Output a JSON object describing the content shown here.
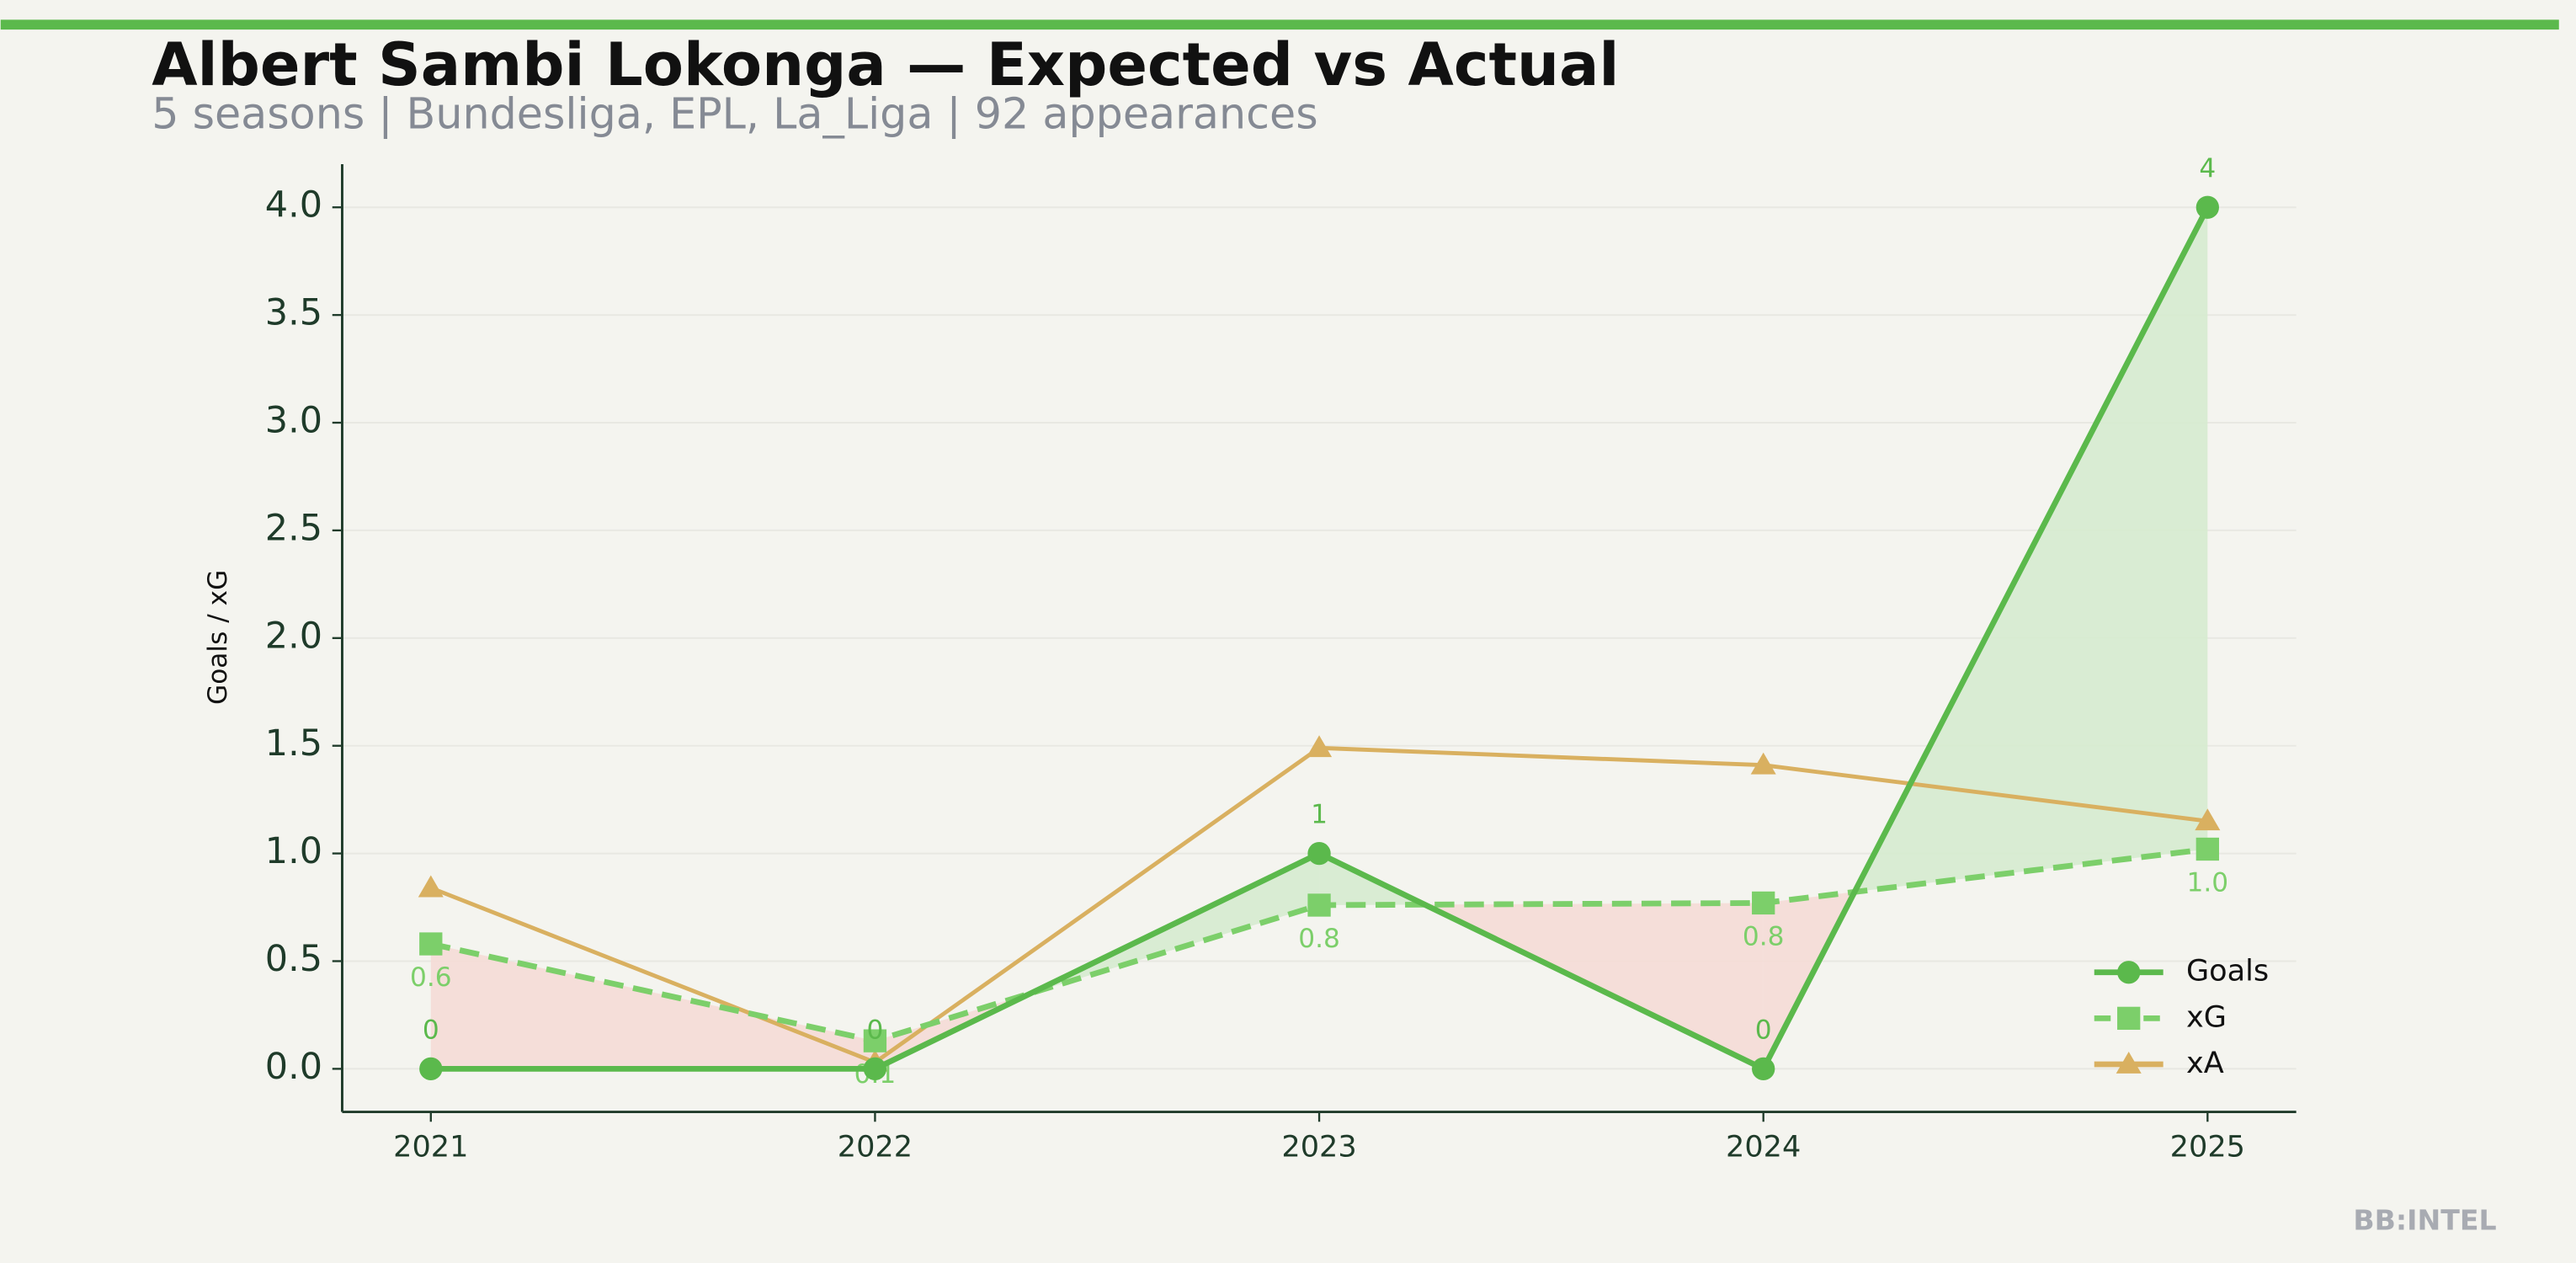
{
  "chart_data": {
    "type": "line",
    "title": "Albert Sambi Lokonga — Expected vs Actual",
    "subtitle": "5 seasons | Bundesliga, EPL, La_Liga | 92 appearances",
    "ylabel": "Goals / xG",
    "watermark": "BB:INTEL",
    "categories": [
      "2021",
      "2022",
      "2023",
      "2024",
      "2025"
    ],
    "series": [
      {
        "name": "Goals",
        "color": "#5bb94c",
        "marker": "circle",
        "linestyle": "solid",
        "values": [
          0,
          0,
          1,
          0,
          4
        ],
        "value_labels": [
          "0",
          "0",
          "1",
          "0",
          "4"
        ]
      },
      {
        "name": "xG",
        "color": "#7ccf6a",
        "marker": "square",
        "linestyle": "dashed",
        "values": [
          0.58,
          0.13,
          0.76,
          0.77,
          1.02
        ],
        "value_labels": [
          "0.6",
          "0.1",
          "0.8",
          "0.8",
          "1.0"
        ]
      },
      {
        "name": "xA",
        "color": "#d9b060",
        "marker": "triangle",
        "linestyle": "solid",
        "values": [
          0.84,
          0.03,
          1.49,
          1.41,
          1.15
        ]
      }
    ],
    "fill_above_color": "#d6ebcf",
    "fill_below_color": "#f5dcd6",
    "ylim": [
      -0.2,
      4.2
    ],
    "yticks": [
      {
        "value": 0,
        "label": "0.0"
      },
      0.5,
      {
        "value": 1,
        "label": "1.0"
      },
      1.5,
      {
        "value": 2,
        "label": "2.0"
      },
      2.5,
      {
        "value": 3,
        "label": "3.0"
      },
      3.5,
      {
        "value": 4,
        "label": "4.0"
      }
    ],
    "grid": true,
    "legend": "lower right"
  }
}
